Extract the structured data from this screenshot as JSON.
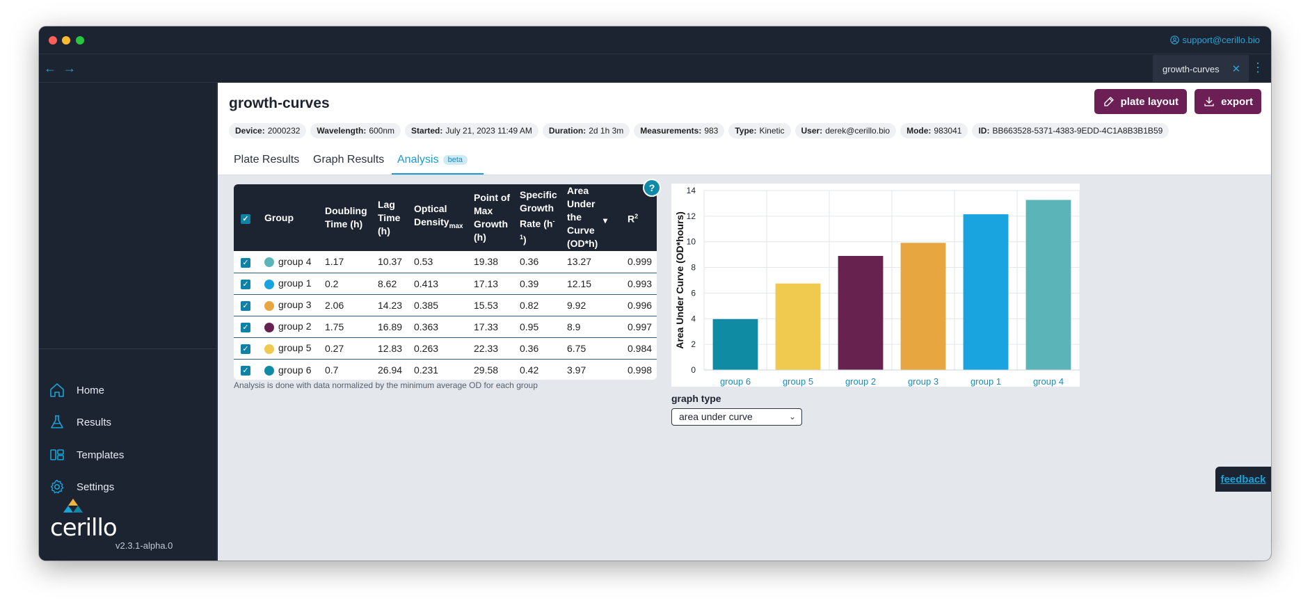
{
  "window": {
    "support_email": "support@cerillo.bio",
    "open_tab": "growth-curves"
  },
  "sidebar": {
    "items": [
      {
        "label": "Home",
        "icon": "home-icon"
      },
      {
        "label": "Results",
        "icon": "flask-icon"
      },
      {
        "label": "Templates",
        "icon": "templates-icon"
      },
      {
        "label": "Settings",
        "icon": "gear-icon"
      }
    ],
    "logo": "cerillo",
    "version": "v2.3.1-alpha.0"
  },
  "header": {
    "title": "growth-curves",
    "plate_layout_label": "plate layout",
    "export_label": "export",
    "meta": [
      {
        "key": "Device:",
        "value": "2000232"
      },
      {
        "key": "Wavelength:",
        "value": "600nm"
      },
      {
        "key": "Started:",
        "value": "July 21, 2023 11:49 AM"
      },
      {
        "key": "Duration:",
        "value": "2d 1h 3m"
      },
      {
        "key": "Measurements:",
        "value": "983"
      },
      {
        "key": "Type:",
        "value": "Kinetic"
      },
      {
        "key": "User:",
        "value": "derek@cerillo.bio"
      },
      {
        "key": "Mode:",
        "value": "983041"
      },
      {
        "key": "ID:",
        "value": "BB663528-5371-4383-9EDD-4C1A8B3B1B59"
      }
    ]
  },
  "tabs": [
    {
      "label": "Plate Results"
    },
    {
      "label": "Graph Results"
    },
    {
      "label": "Analysis",
      "badge": "beta"
    }
  ],
  "table": {
    "headers": {
      "group": "Group",
      "doubling": "Doubling Time (h)",
      "lag": "Lag Time (h)",
      "od": "Optical Density",
      "od_sub": "max",
      "pmg": "Point of Max Growth (h)",
      "sgr": "Specific Growth Rate (h",
      "sgr_sup": "-1",
      "sgr_close": ")",
      "auc": "Area Under the Curve (OD*h)",
      "r2": "R",
      "r2_sup": "2"
    },
    "rows": [
      {
        "group": "group 4",
        "color": "#5bb5b8",
        "doubling": "1.17",
        "lag": "10.37",
        "od": "0.53",
        "pmg": "19.38",
        "sgr": "0.36",
        "auc": "13.27",
        "r2": "0.999"
      },
      {
        "group": "group 1",
        "color": "#19a3df",
        "doubling": "0.2",
        "lag": "8.62",
        "od": "0.413",
        "pmg": "17.13",
        "sgr": "0.39",
        "auc": "12.15",
        "r2": "0.993"
      },
      {
        "group": "group 3",
        "color": "#e8a640",
        "doubling": "2.06",
        "lag": "14.23",
        "od": "0.385",
        "pmg": "15.53",
        "sgr": "0.82",
        "auc": "9.92",
        "r2": "0.996"
      },
      {
        "group": "group 2",
        "color": "#67224f",
        "doubling": "1.75",
        "lag": "16.89",
        "od": "0.363",
        "pmg": "17.33",
        "sgr": "0.95",
        "auc": "8.9",
        "r2": "0.997"
      },
      {
        "group": "group 5",
        "color": "#f0ca4f",
        "doubling": "0.27",
        "lag": "12.83",
        "od": "0.263",
        "pmg": "22.33",
        "sgr": "0.36",
        "auc": "6.75",
        "r2": "0.984"
      },
      {
        "group": "group 6",
        "color": "#0f8ca4",
        "doubling": "0.7",
        "lag": "26.94",
        "od": "0.231",
        "pmg": "29.58",
        "sgr": "0.42",
        "auc": "3.97",
        "r2": "0.998"
      }
    ],
    "note": "Analysis is done with data normalized by the minimum average OD for each group"
  },
  "chart_data": {
    "type": "bar",
    "categories": [
      "group 6",
      "group 5",
      "group 2",
      "group 3",
      "group 1",
      "group 4"
    ],
    "values": [
      3.97,
      6.75,
      8.9,
      9.92,
      12.15,
      13.27
    ],
    "colors": [
      "#0f8ca4",
      "#f0ca4f",
      "#67224f",
      "#e8a640",
      "#19a3df",
      "#5bb5b8"
    ],
    "title": "",
    "xlabel": "",
    "ylabel": "Area Under Curve (OD*hours)",
    "ylim": [
      0,
      14
    ],
    "yticks": [
      0,
      2,
      4,
      6,
      8,
      10,
      12,
      14
    ],
    "grid": true
  },
  "graph_type": {
    "label": "graph type",
    "selected": "area under curve"
  },
  "feedback_label": "feedback"
}
